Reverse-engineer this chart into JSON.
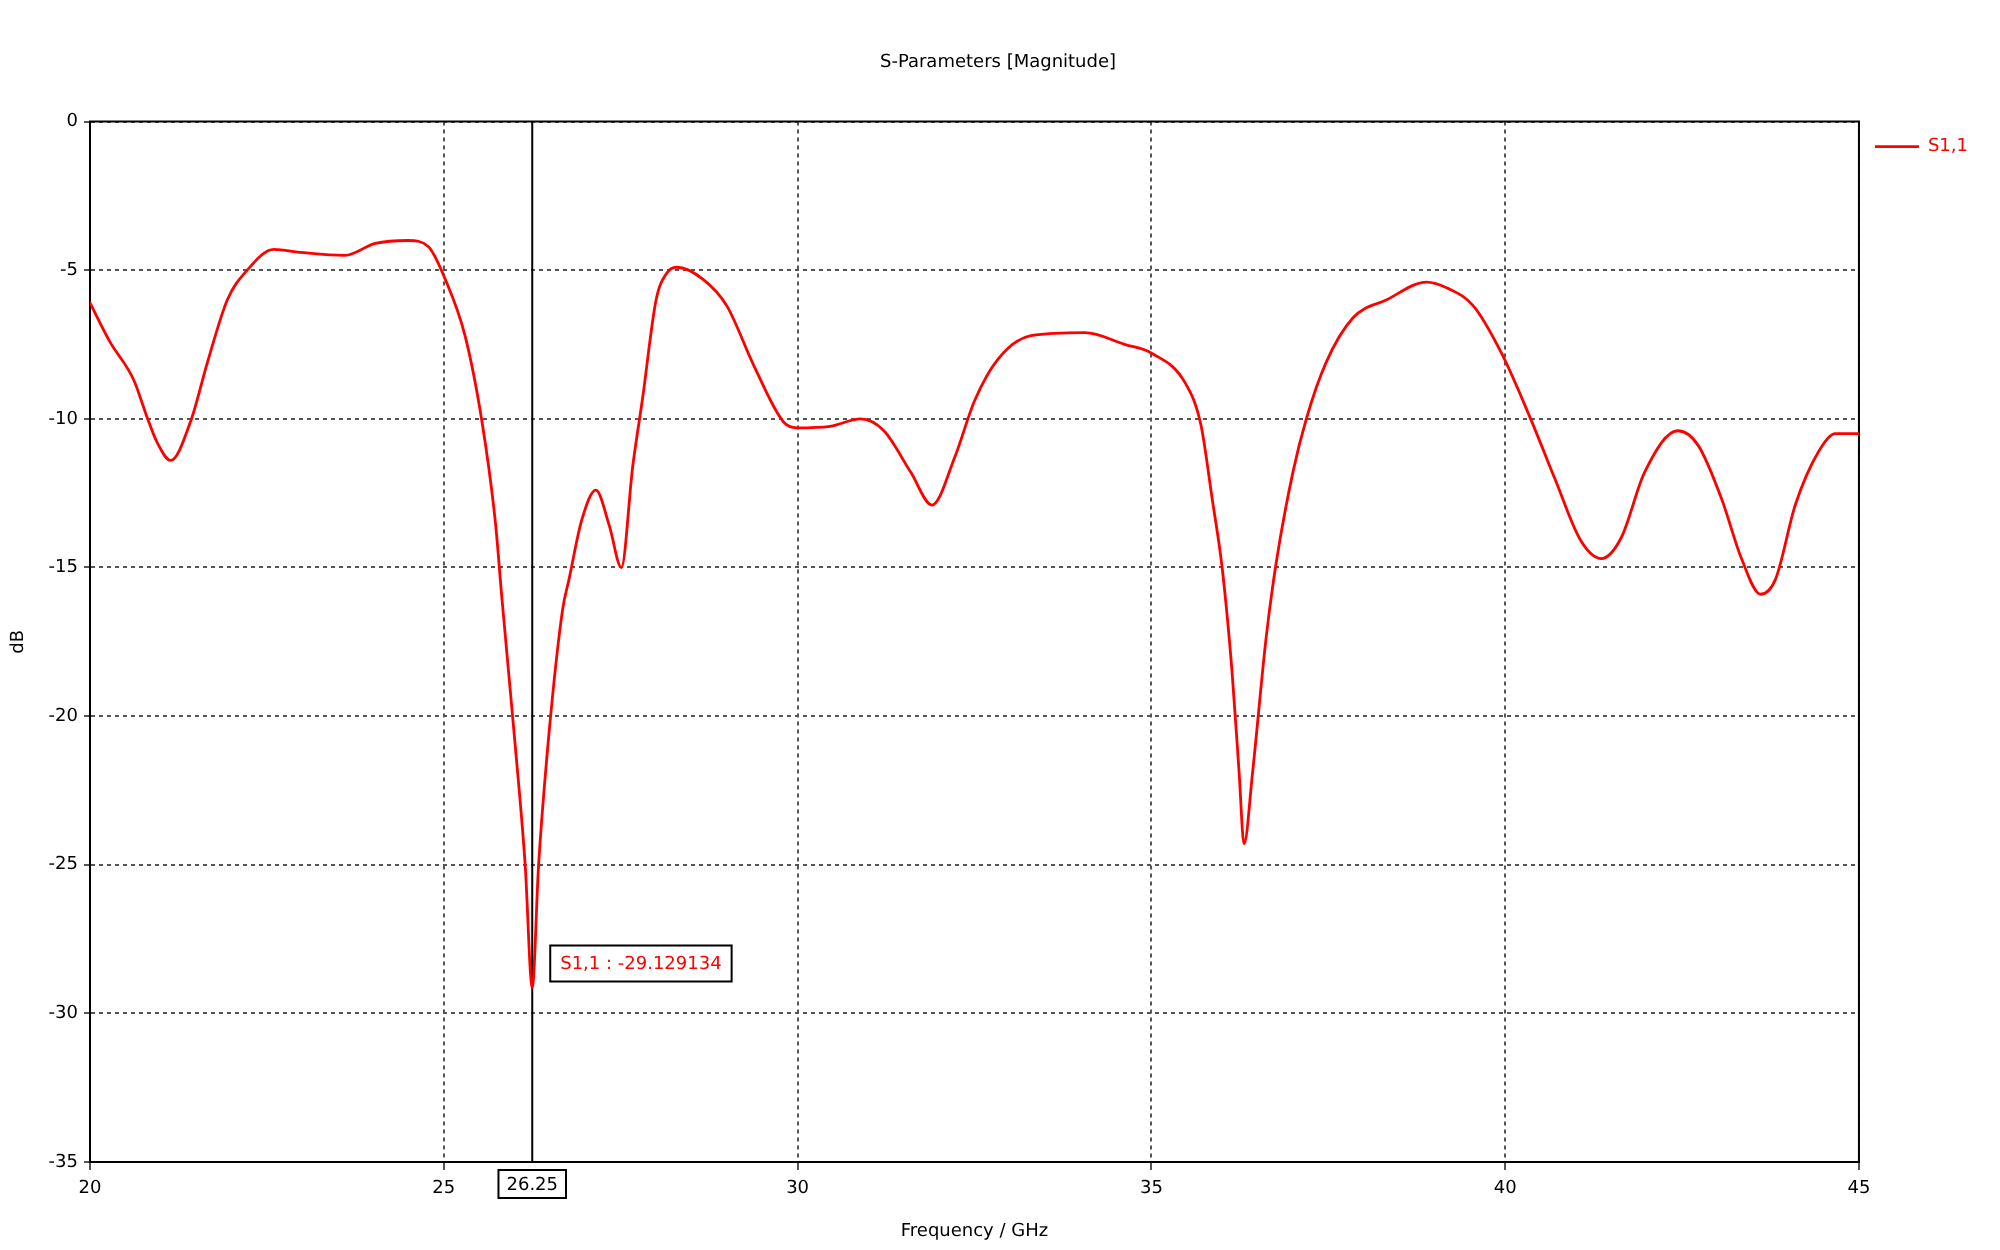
{
  "chart_data": {
    "type": "line",
    "title": "S-Parameters [Magnitude]",
    "xlabel": "Frequency / GHz",
    "ylabel": "dB",
    "x": [
      20.0,
      20.28,
      20.62,
      20.8,
      20.95,
      21.14,
      21.42,
      21.66,
      21.94,
      22.22,
      22.6,
      22.98,
      23.6,
      24.03,
      24.5,
      24.78,
      25.02,
      25.3,
      25.54,
      25.73,
      25.82,
      26.01,
      26.15,
      26.25,
      26.34,
      26.49,
      26.68,
      26.77,
      26.95,
      27.15,
      27.34,
      27.51,
      27.67,
      27.81,
      28.0,
      28.15,
      28.29,
      28.66,
      29.0,
      29.38,
      29.8,
      29.99,
      30.46,
      30.89,
      31.22,
      31.6,
      31.9,
      32.22,
      32.5,
      32.83,
      33.3,
      34.06,
      34.63,
      35.01,
      35.48,
      35.7,
      35.86,
      36.0,
      36.14,
      36.24,
      36.31,
      36.43,
      36.62,
      36.76,
      37.0,
      37.19,
      37.47,
      37.85,
      38.32,
      38.89,
      39.18,
      39.55,
      39.95,
      40.36,
      40.7,
      41.07,
      41.36,
      41.64,
      41.97,
      42.44,
      42.73,
      43.06,
      43.34,
      43.61,
      43.82,
      44.1,
      44.43,
      44.67,
      45.0
    ],
    "series": [
      {
        "name": "S1,1",
        "color": "#ff0000",
        "values": [
          -6.1,
          -7.4,
          -8.7,
          -9.9,
          -10.8,
          -11.4,
          -10.1,
          -8.1,
          -6.0,
          -5.0,
          -4.3,
          -4.4,
          -4.5,
          -4.1,
          -4.0,
          -4.2,
          -5.3,
          -7.2,
          -10.1,
          -13.5,
          -16.0,
          -21.0,
          -25.0,
          -29.13,
          -25.0,
          -20.5,
          -16.4,
          -15.4,
          -13.4,
          -12.4,
          -13.6,
          -15.0,
          -11.6,
          -9.3,
          -6.0,
          -5.1,
          -4.9,
          -5.3,
          -6.2,
          -8.2,
          -10.1,
          -10.3,
          -10.25,
          -10.0,
          -10.4,
          -11.8,
          -12.9,
          -11.3,
          -9.4,
          -8.0,
          -7.2,
          -7.1,
          -7.5,
          -7.8,
          -8.8,
          -10.2,
          -12.7,
          -15.0,
          -18.5,
          -21.9,
          -24.3,
          -21.9,
          -17.4,
          -14.9,
          -11.8,
          -10.0,
          -8.1,
          -6.6,
          -6.0,
          -5.4,
          -5.6,
          -6.2,
          -7.8,
          -10.0,
          -12.0,
          -14.1,
          -14.7,
          -14.0,
          -11.8,
          -10.4,
          -10.9,
          -12.7,
          -14.7,
          -15.9,
          -15.4,
          -12.9,
          -11.1,
          -10.5,
          -10.5
        ]
      }
    ],
    "xlim": [
      20,
      45
    ],
    "xticks": [
      20,
      25,
      30,
      35,
      40,
      45
    ],
    "ylim": [
      -35,
      0
    ],
    "yticks": [
      -35,
      -30,
      -25,
      -20,
      -15,
      -10,
      -5,
      0
    ],
    "grid": true,
    "legend": "top right",
    "ref_lines": [
      {
        "axis": "x",
        "value": 26.25,
        "label": "26.25",
        "color": "#000000"
      }
    ],
    "annotations": [
      {
        "text": "S1,1 : -29.129134",
        "x": 26.25,
        "y": -29.129134
      }
    ]
  }
}
